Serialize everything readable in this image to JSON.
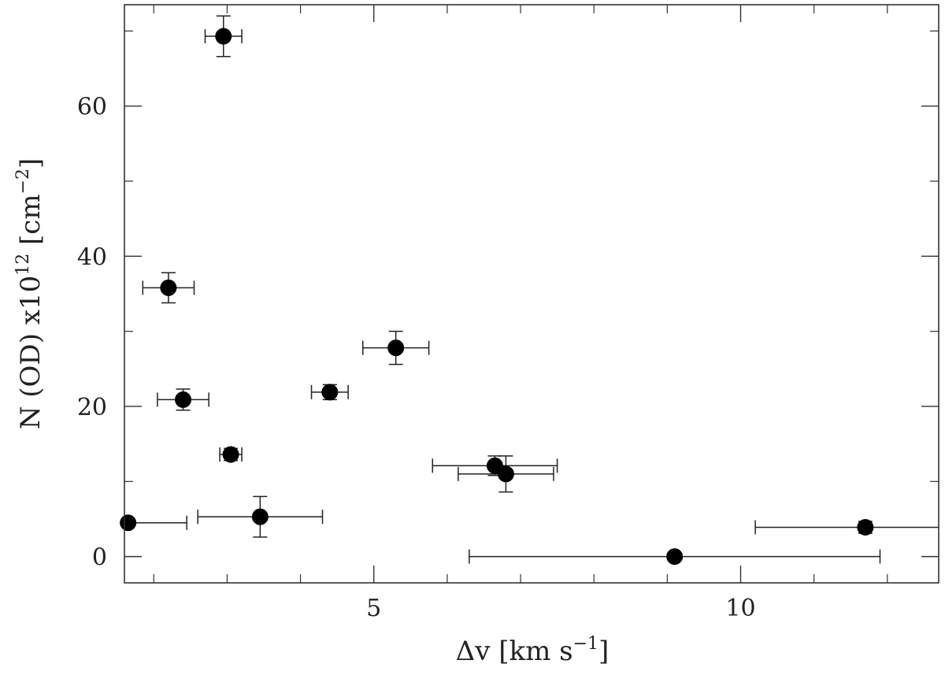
{
  "chart_data": {
    "type": "scatter",
    "xlabel": "Δv [km s",
    "xlabel_sup": "−1",
    "xlabel_tail": "]",
    "ylabel": "N (OD) x10",
    "ylabel_sup1": "12",
    "ylabel_mid": " [cm",
    "ylabel_sup2": "−2",
    "ylabel_tail": "]",
    "xlim": [
      1.6,
      12.7
    ],
    "ylim": [
      -3.5,
      73.5
    ],
    "xticks": [
      5,
      10
    ],
    "xtick_labels": [
      "5",
      "10"
    ],
    "x_minor_ticks": [
      2,
      3,
      4,
      6,
      7,
      8,
      9,
      11,
      12
    ],
    "yticks": [
      0,
      20,
      40,
      60
    ],
    "ytick_labels": [
      "0",
      "20",
      "40",
      "60"
    ],
    "y_minor_ticks": [
      10,
      30,
      50,
      70
    ],
    "grid": false,
    "points": [
      {
        "x": 1.65,
        "y": 4.5,
        "xerr": [
          0.85,
          0.8
        ],
        "yerr": 0
      },
      {
        "x": 2.2,
        "y": 35.8,
        "xerr": [
          0.35,
          0.35
        ],
        "yerr": 2.0
      },
      {
        "x": 2.4,
        "y": 20.9,
        "xerr": [
          0.35,
          0.35
        ],
        "yerr": 1.4
      },
      {
        "x": 2.95,
        "y": 69.3,
        "xerr": [
          0.25,
          0.25
        ],
        "yerr": 2.7
      },
      {
        "x": 3.05,
        "y": 13.6,
        "xerr": [
          0.15,
          0.15
        ],
        "yerr": 0.8
      },
      {
        "x": 3.45,
        "y": 5.3,
        "xerr": [
          0.85,
          0.85
        ],
        "yerr": 2.7
      },
      {
        "x": 4.4,
        "y": 21.9,
        "xerr": [
          0.25,
          0.25
        ],
        "yerr": 1.0
      },
      {
        "x": 5.3,
        "y": 27.8,
        "xerr": [
          0.45,
          0.45
        ],
        "yerr": 2.2
      },
      {
        "x": 6.65,
        "y": 12.1,
        "xerr": [
          0.85,
          0.85
        ],
        "yerr": 1.3
      },
      {
        "x": 6.8,
        "y": 11.0,
        "xerr": [
          0.65,
          0.65
        ],
        "yerr": 2.4
      },
      {
        "x": 9.1,
        "y": 0.0,
        "xerr": [
          2.8,
          2.8
        ],
        "yerr": 0
      },
      {
        "x": 11.7,
        "y": 3.9,
        "xerr": [
          1.5,
          1.5
        ],
        "yerr": 0.8
      }
    ],
    "colors": {
      "axis": "#333333",
      "marker": "#000000"
    }
  }
}
